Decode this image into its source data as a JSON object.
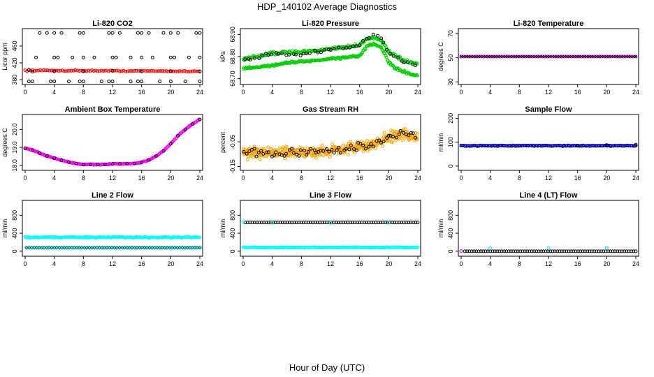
{
  "title": "HDP_140102  Average Diagnostics",
  "xlabel": "Hour of Day (UTC)",
  "colors": {
    "black": "#000000",
    "red": "#ff0000",
    "green": "#00cc00",
    "magenta": "#ff00ff",
    "purple": "#9900cc",
    "orange": "#ffa500",
    "navy": "#000080",
    "blue": "#0000cc",
    "cyan": "#00ffff"
  },
  "chart_data": [
    {
      "type": "scatter",
      "title": "Li-820 CO2",
      "ylabel": "Licor ppm",
      "xlim": [
        0,
        24
      ],
      "ylim": [
        372,
        498
      ],
      "xticks": [
        "0",
        "4",
        "8",
        "12",
        "16",
        "20",
        "24"
      ],
      "yticks": [
        {
          "v": 380,
          "label": "380"
        },
        {
          "v": 420,
          "label": "420"
        },
        {
          "v": 460,
          "label": "460"
        }
      ],
      "series": [
        {
          "name": "reference",
          "color": "red",
          "kind": "band",
          "marker": "o",
          "x": [
            0,
            24
          ],
          "y": [
            402,
            400
          ],
          "halfwidth": 1.5,
          "n": 95
        },
        {
          "name": "line-high",
          "color": "black",
          "kind": "pts",
          "marker": "o",
          "x": [
            2,
            3,
            4,
            5,
            7.5,
            8,
            11.5,
            12,
            13,
            15.5,
            16,
            17,
            19,
            20,
            21,
            23.5,
            24
          ],
          "y": [
            491,
            491,
            491,
            491,
            491,
            491,
            491,
            491,
            491,
            491,
            491,
            491,
            491,
            491,
            491,
            491,
            491
          ]
        },
        {
          "name": "line-mid",
          "color": "black",
          "kind": "pts",
          "marker": "o",
          "x": [
            1.5,
            4,
            4.5,
            6.5,
            8,
            9.5,
            12,
            12.5,
            14.5,
            16,
            17.5,
            20,
            20.5,
            22.5,
            24
          ],
          "y": [
            433,
            433,
            433,
            433,
            433,
            433,
            433,
            433,
            433,
            433,
            433,
            433,
            433,
            433,
            433
          ]
        },
        {
          "name": "line-low",
          "color": "black",
          "kind": "pts",
          "marker": "o",
          "x": [
            0.5,
            1,
            3.5,
            4,
            6,
            7.5,
            8,
            10.5,
            11.5,
            12,
            14.5,
            15.5,
            16,
            18.5,
            20,
            22,
            24
          ],
          "y": [
            376,
            376,
            376,
            376,
            376,
            376,
            376,
            376,
            376,
            376,
            376,
            376,
            376,
            376,
            376,
            376,
            376
          ]
        },
        {
          "name": "near-ref",
          "color": "black",
          "kind": "pts",
          "marker": "o",
          "x": [
            0.5,
            1,
            4,
            8,
            12,
            16,
            20,
            24
          ],
          "y": [
            403,
            399,
            400,
            400,
            401,
            400,
            400,
            400
          ]
        }
      ]
    },
    {
      "type": "scatter",
      "title": "Li-820 Pressure",
      "ylabel": "kPa",
      "xlim": [
        0,
        24
      ],
      "ylim": [
        68.68,
        68.92
      ],
      "xticks": [
        "0",
        "4",
        "8",
        "12",
        "16",
        "20",
        "24"
      ],
      "yticks": [
        {
          "v": 68.7,
          "label": "68.70"
        },
        {
          "v": 68.8,
          "label": "68.80"
        },
        {
          "v": 68.9,
          "label": "68.90"
        }
      ],
      "series": [
        {
          "name": "green-upper",
          "color": "green",
          "kind": "curve",
          "marker": "o",
          "x": [
            0,
            2,
            4,
            6,
            8,
            10,
            12,
            14,
            16,
            17,
            18,
            19,
            20,
            21,
            22,
            23,
            24
          ],
          "y": [
            68.79,
            68.8,
            68.815,
            68.82,
            68.818,
            68.826,
            68.836,
            68.842,
            68.852,
            68.88,
            68.886,
            68.872,
            68.82,
            68.8,
            68.782,
            68.772,
            68.764
          ],
          "noise": 0.008
        },
        {
          "name": "green-lower",
          "color": "green",
          "kind": "curve",
          "marker": "o",
          "x": [
            0,
            2,
            4,
            6,
            8,
            10,
            12,
            14,
            16,
            17,
            18,
            19,
            20,
            21,
            22,
            23,
            24
          ],
          "y": [
            68.745,
            68.752,
            68.76,
            68.772,
            68.776,
            68.782,
            68.79,
            68.796,
            68.802,
            68.845,
            68.858,
            68.84,
            68.775,
            68.745,
            68.733,
            68.72,
            68.716
          ],
          "noise": 0.006
        },
        {
          "name": "black",
          "color": "black",
          "kind": "curve",
          "marker": "o",
          "x": [
            0,
            2,
            4,
            6,
            8,
            10,
            12,
            14,
            16,
            17,
            18,
            19,
            20,
            21,
            22,
            23,
            24
          ],
          "y": [
            68.788,
            68.795,
            68.812,
            68.812,
            68.81,
            68.822,
            68.83,
            68.838,
            68.85,
            68.882,
            68.9,
            68.885,
            68.81,
            68.795,
            68.78,
            68.77,
            68.762
          ],
          "noise": 0.01,
          "n": 50
        }
      ]
    },
    {
      "type": "scatter",
      "title": "Li-820 Temperature",
      "ylabel": "degrees C",
      "xlim": [
        0,
        24
      ],
      "ylim": [
        29,
        73
      ],
      "xticks": [
        "0",
        "4",
        "8",
        "12",
        "16",
        "20",
        "24"
      ],
      "yticks": [
        {
          "v": 30,
          "label": "30"
        },
        {
          "v": 50,
          "label": "50"
        },
        {
          "v": 70,
          "label": "70"
        }
      ],
      "series": [
        {
          "name": "magenta",
          "color": "magenta",
          "kind": "band",
          "marker": "o",
          "x": [
            0,
            24
          ],
          "y": [
            51,
            51
          ],
          "halfwidth": 0,
          "n": 72
        },
        {
          "name": "black",
          "color": "black",
          "kind": "band",
          "marker": "x",
          "x": [
            0,
            24
          ],
          "y": [
            51,
            51
          ],
          "halfwidth": 0,
          "n": 72
        }
      ]
    },
    {
      "type": "scatter",
      "title": "Ambient Box Temperature",
      "ylabel": "degrees C",
      "xlim": [
        0,
        24
      ],
      "ylim": [
        17.8,
        20.75
      ],
      "xticks": [
        "0",
        "4",
        "8",
        "12",
        "16",
        "20",
        "24"
      ],
      "yticks": [
        {
          "v": 18.0,
          "label": "18.0"
        },
        {
          "v": 19.0,
          "label": "19.0"
        },
        {
          "v": 20.0,
          "label": "20.0"
        }
      ],
      "series": [
        {
          "name": "magenta",
          "color": "magenta",
          "kind": "curve",
          "marker": "o",
          "x": [
            0,
            1,
            2,
            3,
            4,
            5,
            6,
            7,
            8,
            9,
            10,
            11,
            12,
            13,
            14,
            15,
            16,
            17,
            18,
            19,
            20,
            21,
            22,
            23,
            24
          ],
          "y": [
            18.95,
            18.85,
            18.68,
            18.52,
            18.4,
            18.28,
            18.18,
            18.1,
            18.05,
            18.05,
            18.05,
            18.05,
            18.08,
            18.08,
            18.09,
            18.1,
            18.16,
            18.3,
            18.52,
            18.8,
            19.2,
            19.65,
            20.0,
            20.3,
            20.55
          ],
          "noise": 0.03
        },
        {
          "name": "black",
          "color": "black",
          "kind": "pts",
          "marker": "o",
          "x": [
            0,
            1,
            2,
            3,
            4,
            5,
            6,
            7,
            8,
            9,
            10,
            11,
            12,
            13,
            14,
            15,
            16,
            17,
            18,
            19,
            20,
            21,
            22,
            23,
            24
          ],
          "y": [
            18.95,
            18.85,
            18.68,
            18.52,
            18.4,
            18.28,
            18.18,
            18.1,
            18.05,
            18.05,
            18.05,
            18.05,
            18.08,
            18.08,
            18.09,
            18.1,
            18.16,
            18.3,
            18.52,
            18.8,
            19.2,
            19.65,
            20.0,
            20.3,
            20.55
          ]
        }
      ]
    },
    {
      "type": "scatter",
      "title": "Gas Stream RH",
      "ylabel": "percent",
      "xlim": [
        0,
        24
      ],
      "ylim": [
        -0.16,
        0.055
      ],
      "xticks": [
        "0",
        "4",
        "8",
        "12",
        "16",
        "20",
        "24"
      ],
      "yticks": [
        {
          "v": -0.15,
          "label": "-0.15"
        },
        {
          "v": -0.05,
          "label": "-0.05"
        }
      ],
      "series": [
        {
          "name": "orange",
          "color": "orange",
          "kind": "curve",
          "marker": "o",
          "x": [
            0,
            4,
            8,
            12,
            16,
            18,
            20,
            22,
            24
          ],
          "y": [
            -0.095,
            -0.095,
            -0.095,
            -0.085,
            -0.07,
            -0.06,
            -0.03,
            -0.02,
            -0.03
          ],
          "noise": 0.028,
          "n": 420
        },
        {
          "name": "black",
          "color": "black",
          "kind": "curve",
          "marker": "o",
          "x": [
            0,
            4,
            8,
            12,
            16,
            18,
            20,
            22,
            24
          ],
          "y": [
            -0.095,
            -0.095,
            -0.095,
            -0.085,
            -0.07,
            -0.06,
            -0.03,
            -0.02,
            -0.03
          ],
          "noise": 0.025,
          "n": 70
        }
      ]
    },
    {
      "type": "scatter",
      "title": "Sample Flow",
      "ylabel": "ml/min",
      "xlim": [
        0,
        24
      ],
      "ylim": [
        -12,
        210
      ],
      "xticks": [
        "0",
        "4",
        "8",
        "12",
        "16",
        "20",
        "24"
      ],
      "yticks": [
        {
          "v": 0,
          "label": "0"
        },
        {
          "v": 100,
          "label": "100"
        },
        {
          "v": 200,
          "label": "200"
        }
      ],
      "series": [
        {
          "name": "navy",
          "color": "navy",
          "kind": "band",
          "marker": "o",
          "x": [
            0,
            24
          ],
          "y": [
            85,
            85
          ],
          "halfwidth": 1.5,
          "n": 140
        },
        {
          "name": "blue",
          "color": "blue",
          "kind": "band",
          "marker": "x",
          "x": [
            0,
            24
          ],
          "y": [
            86,
            86
          ],
          "halfwidth": 1,
          "n": 60
        },
        {
          "name": "black",
          "color": "black",
          "kind": "pts",
          "marker": "o",
          "x": [
            16,
            20,
            24
          ],
          "y": [
            86,
            88,
            90
          ]
        }
      ]
    },
    {
      "type": "scatter",
      "title": "Line 2 Flow",
      "ylabel": "ml/min",
      "xlim": [
        0,
        24
      ],
      "ylim": [
        -80,
        1100
      ],
      "xticks": [
        "0",
        "4",
        "8",
        "12",
        "16",
        "20",
        "24"
      ],
      "yticks": [
        {
          "v": 0,
          "label": "0"
        },
        {
          "v": 400,
          "label": "400"
        },
        {
          "v": 800,
          "label": "800"
        }
      ],
      "series": [
        {
          "name": "cyan",
          "color": "cyan",
          "kind": "band",
          "marker": "o",
          "x": [
            0,
            24
          ],
          "y": [
            310,
            310
          ],
          "halfwidth": 18,
          "n": 180
        },
        {
          "name": "black",
          "color": "black",
          "kind": "band",
          "marker": "o",
          "x": [
            0.2,
            24
          ],
          "y": [
            80,
            80
          ],
          "halfwidth": 0,
          "n": 70
        },
        {
          "name": "cyan-low",
          "color": "cyan",
          "kind": "band",
          "marker": "x",
          "x": [
            0.2,
            24
          ],
          "y": [
            80,
            80
          ],
          "halfwidth": 0,
          "n": 70
        }
      ]
    },
    {
      "type": "scatter",
      "title": "Line 3 Flow",
      "ylabel": "ml/min",
      "xlim": [
        0,
        24
      ],
      "ylim": [
        -80,
        1100
      ],
      "xticks": [
        "0",
        "4",
        "8",
        "12",
        "16",
        "20",
        "24"
      ],
      "yticks": [
        {
          "v": 0,
          "label": "0"
        },
        {
          "v": 400,
          "label": "400"
        },
        {
          "v": 800,
          "label": "800"
        }
      ],
      "series": [
        {
          "name": "cyan",
          "color": "cyan",
          "kind": "band",
          "marker": "o",
          "x": [
            0,
            24
          ],
          "y": [
            85,
            85
          ],
          "halfwidth": 10,
          "n": 180
        },
        {
          "name": "black",
          "color": "black",
          "kind": "band",
          "marker": "o",
          "x": [
            0.3,
            24
          ],
          "y": [
            640,
            640
          ],
          "halfwidth": 0,
          "n": 75
        },
        {
          "name": "cyan-high",
          "color": "cyan",
          "kind": "pts",
          "marker": "o",
          "x": [
            0,
            4,
            12,
            20
          ],
          "y": [
            645,
            630,
            630,
            635
          ]
        }
      ]
    },
    {
      "type": "scatter",
      "title": "Line 4 (LT) Flow",
      "ylabel": "ml/min",
      "xlim": [
        0,
        24
      ],
      "ylim": [
        -80,
        1100
      ],
      "xticks": [
        "0",
        "4",
        "8",
        "12",
        "16",
        "20",
        "24"
      ],
      "yticks": [
        {
          "v": 0,
          "label": "0"
        },
        {
          "v": 400,
          "label": "400"
        },
        {
          "v": 800,
          "label": "800"
        }
      ],
      "series": [
        {
          "name": "black",
          "color": "black",
          "kind": "band",
          "marker": "o",
          "x": [
            0.5,
            24
          ],
          "y": [
            0,
            0
          ],
          "halfwidth": 0,
          "n": 75
        },
        {
          "name": "cyan",
          "color": "cyan",
          "kind": "pts",
          "marker": "o",
          "x": [
            0,
            4,
            12,
            20
          ],
          "y": [
            0,
            70,
            70,
            70
          ]
        },
        {
          "name": "magenta",
          "color": "magenta",
          "kind": "pts",
          "marker": "o",
          "x": [
            0
          ],
          "y": [
            5
          ]
        }
      ]
    }
  ]
}
